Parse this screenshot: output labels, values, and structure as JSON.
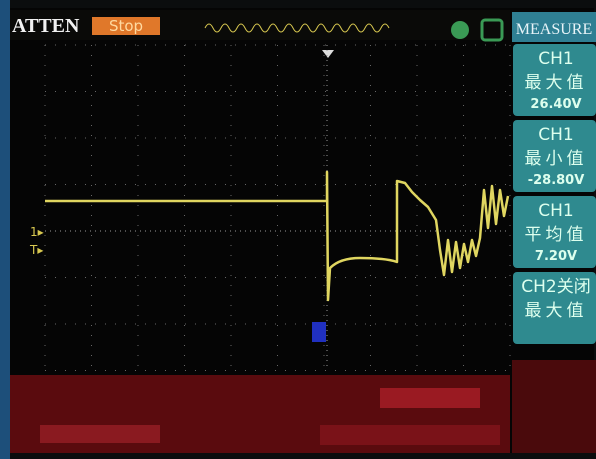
{
  "header": {
    "mode": "ATTEN",
    "status": "Stop",
    "menu": "MEASURE"
  },
  "measurements": [
    {
      "channel": "CH1",
      "label": "最大值",
      "value": "26.40V"
    },
    {
      "channel": "CH1",
      "label": "最小值",
      "value": "-28.80V"
    },
    {
      "channel": "CH1",
      "label": "平均值",
      "value": "7.20V"
    },
    {
      "channel": "CH2关闭",
      "label": "最大值"
    }
  ]
}
